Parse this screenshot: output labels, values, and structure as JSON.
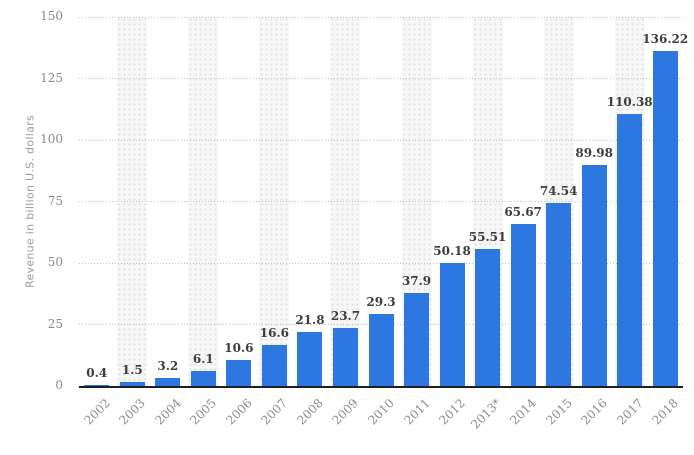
{
  "chart_data": {
    "type": "bar",
    "title": "",
    "xlabel": "",
    "ylabel": "Revenue in billion U.S. dollars",
    "categories": [
      "2002",
      "2003",
      "2004",
      "2005",
      "2006",
      "2007",
      "2008",
      "2009",
      "2010",
      "2011",
      "2012",
      "2013*",
      "2014",
      "2015",
      "2016",
      "2017",
      "2018"
    ],
    "values": [
      0.4,
      1.5,
      3.2,
      6.1,
      10.6,
      16.6,
      21.8,
      23.7,
      29.3,
      37.9,
      50.18,
      55.51,
      65.67,
      74.54,
      89.98,
      110.38,
      136.22
    ],
    "value_labels": [
      "0.4",
      "1.5",
      "3.2",
      "6.1",
      "10.6",
      "16.6",
      "21.8",
      "23.7",
      "29.3",
      "37.9",
      "50.18",
      "55.51",
      "65.67",
      "74.54",
      "89.98",
      "110.38",
      "136.22"
    ],
    "ylim": [
      0,
      150
    ],
    "yticks": [
      0,
      25,
      50,
      75,
      100,
      125,
      150
    ],
    "grid": true,
    "gridline_style": "dotted",
    "legend": "none",
    "striped_columns": "every-other-category-starting-2003",
    "colors": {
      "bar": "#2c78e0",
      "value_label_text": "#3c3c3c",
      "tick_text": "#8a8a8a",
      "axis_title_text": "#9a9a9a",
      "gridline": "#c2c2c2",
      "stripe_background": "#f7f7f7",
      "stripe_dots": "#e2e2e2",
      "baseline": "#1f1f1f",
      "background": "#ffffff"
    }
  }
}
